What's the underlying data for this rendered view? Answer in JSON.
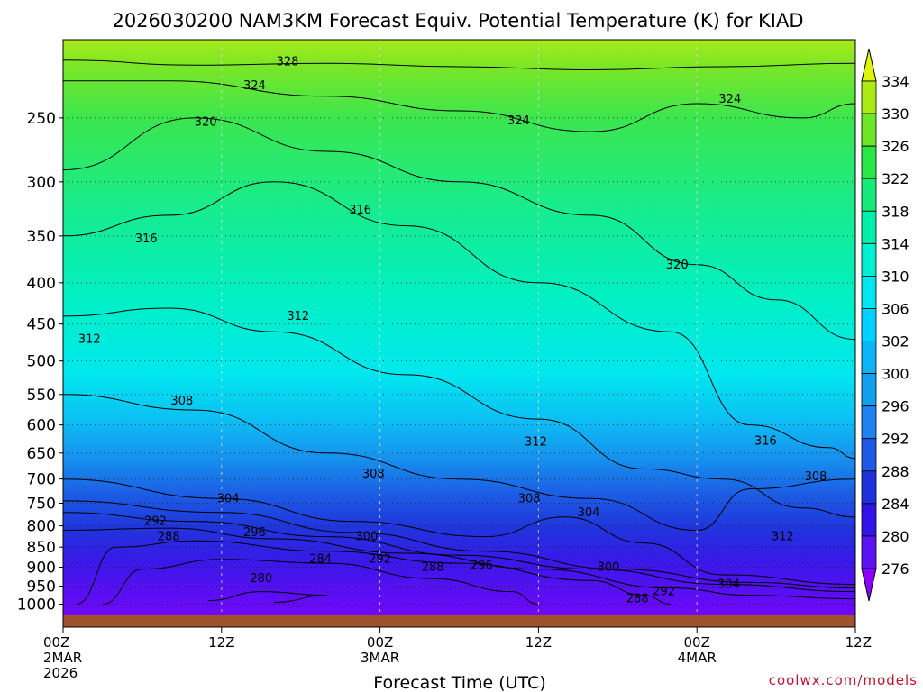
{
  "chart_data": {
    "type": "heatmap",
    "title": "2026030200 NAM3KM Forecast Equiv. Potential Temperature (K) for KIAD",
    "xlabel": "Forecast Time (UTC)",
    "ylabel": "",
    "y_scale": "log",
    "y_reversed": true,
    "ylim": [
      1030,
      200
    ],
    "y_ticks": [
      250,
      300,
      350,
      400,
      450,
      500,
      550,
      600,
      650,
      700,
      750,
      800,
      850,
      900,
      950,
      1000
    ],
    "x_ticks": [
      {
        "hour": 0,
        "lines": [
          "00Z",
          "2MAR",
          "2026"
        ]
      },
      {
        "hour": 12,
        "lines": [
          "12Z"
        ]
      },
      {
        "hour": 24,
        "lines": [
          "00Z",
          "3MAR"
        ]
      },
      {
        "hour": 36,
        "lines": [
          "12Z"
        ]
      },
      {
        "hour": 48,
        "lines": [
          "00Z",
          "4MAR"
        ]
      },
      {
        "hour": 60,
        "lines": [
          "12Z"
        ]
      }
    ],
    "xlim": [
      0,
      60
    ],
    "grid": true,
    "colorbar": {
      "labels": [
        276,
        280,
        284,
        288,
        292,
        296,
        300,
        302,
        306,
        310,
        314,
        318,
        322,
        326,
        330,
        334
      ],
      "colors": [
        "#8a00ff",
        "#5a14f2",
        "#3214e6",
        "#1e32dc",
        "#1e5ae6",
        "#1e82f0",
        "#14a0f0",
        "#0ab4f5",
        "#00d2ff",
        "#00e6f0",
        "#00f0d2",
        "#00f0aa",
        "#14eb78",
        "#28e646",
        "#6ee628",
        "#aaeb14",
        "#dcf50a"
      ]
    },
    "series": [
      {
        "name": "",
        "level": 276,
        "points": []
      },
      {
        "level": 280,
        "points": [
          [
            11,
            990
          ],
          [
            15,
            965
          ],
          [
            20,
            975
          ],
          [
            16,
            995
          ]
        ]
      },
      {
        "level": 284,
        "points": [
          [
            3,
            1000
          ],
          [
            6,
            905
          ],
          [
            12,
            880
          ],
          [
            20,
            890
          ],
          [
            28,
            930
          ],
          [
            34,
            965
          ],
          [
            36,
            1000
          ]
        ]
      },
      {
        "level": 288,
        "points": [
          [
            1,
            1000
          ],
          [
            4,
            850
          ],
          [
            10,
            835
          ],
          [
            20,
            860
          ],
          [
            30,
            890
          ],
          [
            40,
            935
          ],
          [
            44,
            975
          ],
          [
            46,
            1000
          ]
        ]
      },
      {
        "level": 292,
        "points": [
          [
            0,
            810
          ],
          [
            8,
            805
          ],
          [
            16,
            830
          ],
          [
            26,
            865
          ],
          [
            36,
            905
          ],
          [
            46,
            955
          ],
          [
            52,
            975
          ],
          [
            60,
            985
          ]
        ]
      },
      {
        "level": 296,
        "points": [
          [
            0,
            770
          ],
          [
            10,
            790
          ],
          [
            20,
            825
          ],
          [
            30,
            870
          ],
          [
            40,
            905
          ],
          [
            50,
            945
          ],
          [
            60,
            965
          ]
        ]
      },
      {
        "level": 300,
        "points": [
          [
            0,
            745
          ],
          [
            12,
            770
          ],
          [
            22,
            815
          ],
          [
            32,
            860
          ],
          [
            42,
            905
          ],
          [
            52,
            940
          ],
          [
            60,
            955
          ]
        ]
      },
      {
        "level": 304,
        "points": [
          [
            0,
            700
          ],
          [
            12,
            740
          ],
          [
            22,
            790
          ],
          [
            32,
            825
          ],
          [
            38,
            780
          ],
          [
            44,
            840
          ],
          [
            50,
            920
          ],
          [
            60,
            945
          ]
        ]
      },
      {
        "level": 308,
        "points": [
          [
            0,
            550
          ],
          [
            10,
            575
          ],
          [
            20,
            650
          ],
          [
            30,
            700
          ],
          [
            40,
            740
          ],
          [
            48,
            810
          ],
          [
            52,
            720
          ],
          [
            60,
            700
          ]
        ]
      },
      {
        "level": 312,
        "points": [
          [
            0,
            440
          ],
          [
            8,
            430
          ],
          [
            16,
            460
          ],
          [
            26,
            520
          ],
          [
            36,
            590
          ],
          [
            44,
            680
          ],
          [
            50,
            700
          ],
          [
            56,
            760
          ],
          [
            60,
            780
          ]
        ]
      },
      {
        "level": 316,
        "points": [
          [
            0,
            350
          ],
          [
            8,
            330
          ],
          [
            16,
            300
          ],
          [
            26,
            340
          ],
          [
            36,
            400
          ],
          [
            46,
            460
          ],
          [
            52,
            600
          ],
          [
            58,
            640
          ],
          [
            60,
            660
          ]
        ]
      },
      {
        "level": 320,
        "points": [
          [
            0,
            290
          ],
          [
            10,
            250
          ],
          [
            20,
            275
          ],
          [
            30,
            300
          ],
          [
            40,
            330
          ],
          [
            48,
            380
          ],
          [
            54,
            420
          ],
          [
            60,
            470
          ]
        ]
      },
      {
        "level": 324,
        "points": [
          [
            0,
            225
          ],
          [
            8,
            225
          ],
          [
            20,
            235
          ],
          [
            30,
            245
          ],
          [
            40,
            260
          ],
          [
            48,
            240
          ],
          [
            56,
            250
          ],
          [
            60,
            240
          ]
        ]
      },
      {
        "level": 328,
        "points": [
          [
            0,
            212
          ],
          [
            10,
            215
          ],
          [
            20,
            214
          ],
          [
            30,
            216
          ],
          [
            40,
            218
          ],
          [
            50,
            216
          ],
          [
            60,
            214
          ]
        ]
      }
    ],
    "contour_labels": [
      {
        "text": "328",
        "hour": 17,
        "p": 213
      },
      {
        "text": "324",
        "hour": 14.5,
        "p": 228
      },
      {
        "text": "324",
        "hour": 34.5,
        "p": 252
      },
      {
        "text": "324",
        "hour": 50.5,
        "p": 237
      },
      {
        "text": "320",
        "hour": 10.8,
        "p": 253
      },
      {
        "text": "320",
        "hour": 46.5,
        "p": 380
      },
      {
        "text": "316",
        "hour": 22.5,
        "p": 325
      },
      {
        "text": "316",
        "hour": 6.3,
        "p": 353
      },
      {
        "text": "316",
        "hour": 53.2,
        "p": 628
      },
      {
        "text": "312",
        "hour": 17.8,
        "p": 440
      },
      {
        "text": "312",
        "hour": 2,
        "p": 470
      },
      {
        "text": "312",
        "hour": 35.8,
        "p": 630
      },
      {
        "text": "312",
        "hour": 54.5,
        "p": 825
      },
      {
        "text": "308",
        "hour": 9,
        "p": 560
      },
      {
        "text": "308",
        "hour": 23.5,
        "p": 690
      },
      {
        "text": "308",
        "hour": 35.3,
        "p": 740
      },
      {
        "text": "308",
        "hour": 57,
        "p": 695
      },
      {
        "text": "304",
        "hour": 12.5,
        "p": 740
      },
      {
        "text": "304",
        "hour": 39.8,
        "p": 770
      },
      {
        "text": "304",
        "hour": 50.4,
        "p": 945
      },
      {
        "text": "300",
        "hour": 23,
        "p": 825
      },
      {
        "text": "300",
        "hour": 41.3,
        "p": 900
      },
      {
        "text": "296",
        "hour": 14.5,
        "p": 815
      },
      {
        "text": "296",
        "hour": 31.7,
        "p": 895
      },
      {
        "text": "292",
        "hour": 7,
        "p": 790
      },
      {
        "text": "292",
        "hour": 24,
        "p": 880
      },
      {
        "text": "292",
        "hour": 45.5,
        "p": 965
      },
      {
        "text": "288",
        "hour": 8,
        "p": 825
      },
      {
        "text": "288",
        "hour": 28,
        "p": 900
      },
      {
        "text": "288",
        "hour": 43.5,
        "p": 985
      },
      {
        "text": "284",
        "hour": 19.5,
        "p": 880
      },
      {
        "text": "280",
        "hour": 15,
        "p": 930
      }
    ]
  },
  "credit": "coolwx.com/models"
}
